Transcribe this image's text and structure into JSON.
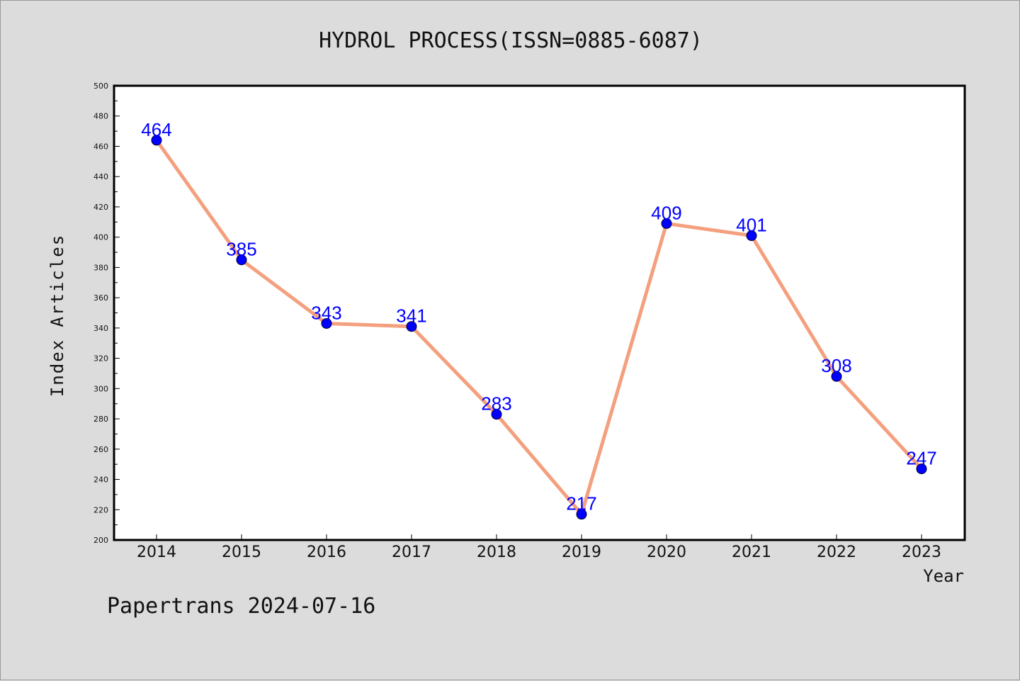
{
  "colors": {
    "background": "#dcdcdc",
    "plot_background": "#ffffff",
    "line": "#f4a07e",
    "marker": "#0000ff",
    "data_label": "#0000ff"
  },
  "footer": "Papertrans 2024-07-16",
  "chart_data": {
    "type": "line",
    "title": "HYDROL PROCESS(ISSN=0885-6087)",
    "xlabel": "Year",
    "ylabel": "Index Articles",
    "categories": [
      "2014",
      "2015",
      "2016",
      "2017",
      "2018",
      "2019",
      "2020",
      "2021",
      "2022",
      "2023"
    ],
    "series": [
      {
        "values": [
          464,
          385,
          343,
          341,
          283,
          217,
          409,
          401,
          308,
          247
        ]
      }
    ],
    "ylim": [
      200,
      500
    ],
    "yticks": [
      200,
      220,
      240,
      260,
      280,
      300,
      320,
      340,
      360,
      380,
      400,
      420,
      440,
      460,
      480,
      500
    ],
    "grid": false,
    "legend": "none"
  }
}
